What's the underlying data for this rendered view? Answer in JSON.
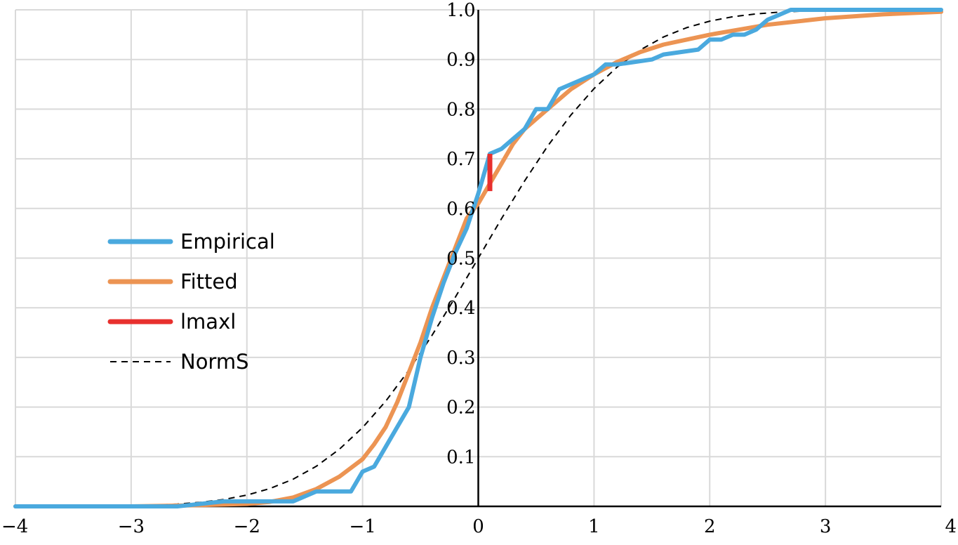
{
  "chart_data": {
    "type": "line",
    "title": "",
    "xlabel": "",
    "ylabel": "",
    "xlim": [
      -4,
      4
    ],
    "ylim": [
      0,
      1
    ],
    "x_ticks": [
      -4,
      -3,
      -2,
      -1,
      0,
      1,
      2,
      3,
      4
    ],
    "x_tick_labels": [
      "−4",
      "−3",
      "−2",
      "−1",
      "0",
      "1",
      "2",
      "3",
      "4"
    ],
    "y_ticks": [
      0.1,
      0.2,
      0.3,
      0.4,
      0.5,
      0.6,
      0.7,
      0.8,
      0.9,
      1.0
    ],
    "y_tick_labels": [
      "0.1",
      "0.2",
      "0.3",
      "0.4",
      "0.5",
      "0.6",
      "0.7",
      "0.8",
      "0.9",
      "1.0"
    ],
    "grid": true,
    "legend_position": "left-middle",
    "series": [
      {
        "name": "Empirical",
        "color": "#4aa9de",
        "style": "solid",
        "x": [
          -4,
          -2.6,
          -2.2,
          -2.0,
          -1.6,
          -1.4,
          -1.1,
          -1.0,
          -0.9,
          -0.8,
          -0.7,
          -0.6,
          -0.5,
          -0.4,
          -0.3,
          -0.2,
          -0.1,
          0.0,
          0.1,
          0.2,
          0.3,
          0.4,
          0.5,
          0.6,
          0.7,
          0.9,
          1.0,
          1.1,
          1.2,
          1.5,
          1.6,
          1.9,
          2.0,
          2.1,
          2.2,
          2.3,
          2.4,
          2.5,
          2.6,
          2.7,
          4.0
        ],
        "y": [
          0.0,
          0.0,
          0.01,
          0.01,
          0.01,
          0.03,
          0.03,
          0.07,
          0.08,
          0.12,
          0.16,
          0.2,
          0.3,
          0.38,
          0.45,
          0.51,
          0.56,
          0.63,
          0.71,
          0.72,
          0.74,
          0.76,
          0.8,
          0.8,
          0.84,
          0.86,
          0.87,
          0.89,
          0.89,
          0.9,
          0.91,
          0.92,
          0.94,
          0.94,
          0.95,
          0.95,
          0.96,
          0.98,
          0.99,
          1.0,
          1.0
        ]
      },
      {
        "name": "Fitted",
        "color": "#ec9453",
        "style": "solid",
        "x": [
          -4,
          -3,
          -2.5,
          -2,
          -1.8,
          -1.6,
          -1.4,
          -1.2,
          -1.0,
          -0.9,
          -0.8,
          -0.7,
          -0.6,
          -0.5,
          -0.4,
          -0.3,
          -0.2,
          -0.1,
          0.0,
          0.1,
          0.2,
          0.3,
          0.4,
          0.5,
          0.6,
          0.8,
          1.0,
          1.2,
          1.4,
          1.6,
          1.8,
          2.0,
          2.5,
          3.0,
          3.5,
          4.0
        ],
        "y": [
          0.0,
          0.0,
          0.002,
          0.005,
          0.009,
          0.018,
          0.035,
          0.06,
          0.095,
          0.125,
          0.16,
          0.21,
          0.27,
          0.33,
          0.4,
          0.46,
          0.52,
          0.58,
          0.61,
          0.65,
          0.69,
          0.73,
          0.76,
          0.78,
          0.8,
          0.84,
          0.87,
          0.895,
          0.915,
          0.93,
          0.94,
          0.95,
          0.97,
          0.983,
          0.991,
          0.996
        ]
      },
      {
        "name": "lmaxl",
        "color": "#e8302e",
        "style": "solid",
        "x": [
          0.1,
          0.1
        ],
        "y": [
          0.635,
          0.71
        ]
      },
      {
        "name": "NormS",
        "color": "#000000",
        "style": "dashed",
        "x": [
          -4.0,
          -3.8,
          -3.6,
          -3.4,
          -3.2,
          -3.0,
          -2.8,
          -2.6,
          -2.4,
          -2.2,
          -2.0,
          -1.8,
          -1.6,
          -1.4,
          -1.2,
          -1.0,
          -0.8,
          -0.6,
          -0.4,
          -0.2,
          0.0,
          0.2,
          0.4,
          0.6,
          0.8,
          1.0,
          1.2,
          1.4,
          1.6,
          1.8,
          2.0,
          2.2,
          2.4,
          2.6,
          2.8,
          3.0,
          3.2,
          3.4,
          3.6,
          3.8,
          4.0
        ],
        "y": [
          3e-05,
          7e-05,
          0.00016,
          0.00034,
          0.00069,
          0.00135,
          0.00256,
          0.00466,
          0.0082,
          0.0139,
          0.0228,
          0.0359,
          0.0548,
          0.0808,
          0.1151,
          0.1587,
          0.2119,
          0.2743,
          0.3446,
          0.4207,
          0.5,
          0.5793,
          0.6554,
          0.7257,
          0.7881,
          0.8413,
          0.8849,
          0.9192,
          0.9452,
          0.9641,
          0.9772,
          0.9861,
          0.9918,
          0.9953,
          0.9974,
          0.99865,
          0.99931,
          0.99966,
          0.99984,
          0.99993,
          0.99997
        ]
      }
    ]
  }
}
